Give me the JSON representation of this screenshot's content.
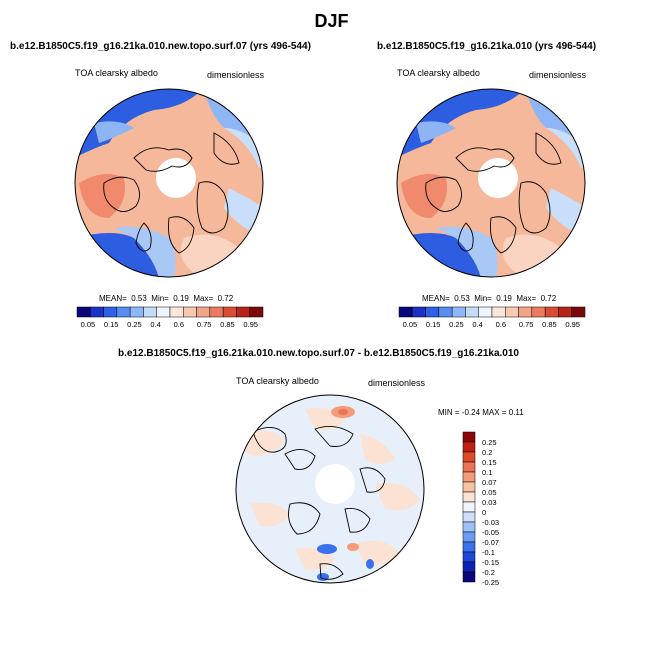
{
  "title": "DJF",
  "colors": {
    "hbar": [
      "#08087a",
      "#1a32c8",
      "#2f5fe6",
      "#5a8ef4",
      "#8fb8f8",
      "#c5dcf8",
      "#eef4fb",
      "#fbe6dc",
      "#f9c9b0",
      "#f4a488",
      "#ec7a5e",
      "#dc4c33",
      "#b8241a",
      "#7a0a0a"
    ],
    "vbar": [
      "#08087a",
      "#1020b4",
      "#1c48d8",
      "#3a72ee",
      "#6a9cf5",
      "#9ec2f8",
      "#cfe0f8",
      "#f1f5fb",
      "#fbe2d2",
      "#f8c2a4",
      "#f49c7a",
      "#ec7252",
      "#e04a2c",
      "#c0200f",
      "#8a0606"
    ]
  },
  "panels": [
    {
      "case": "b.e12.B1850C5.f19_g16.21ka.010.new.topo.surf.07 (yrs 496-544)",
      "variable": "TOA clearsky albedo",
      "units": "dimensionless",
      "stats": {
        "mean_label": "MEAN=",
        "mean": "0.53",
        "min_label": "Min=",
        "min": "0.19",
        "max_label": "Max=",
        "max": "0.72"
      },
      "ticks": [
        "0.05",
        "0.15",
        "0.25",
        "0.4",
        "0.6",
        "0.75",
        "0.85",
        "0.95"
      ]
    },
    {
      "case": "b.e12.B1850C5.f19_g16.21ka.010 (yrs 496-544)",
      "variable": "TOA clearsky albedo",
      "units": "dimensionless",
      "stats": {
        "mean_label": "MEAN=",
        "mean": "0.53",
        "min_label": "Min=",
        "min": "0.19",
        "max_label": "Max=",
        "max": "0.72"
      },
      "ticks": [
        "0.05",
        "0.15",
        "0.25",
        "0.4",
        "0.6",
        "0.75",
        "0.85",
        "0.95"
      ]
    }
  ],
  "diff": {
    "title": "b.e12.B1850C5.f19_g16.21ka.010.new.topo.surf.07 - b.e12.B1850C5.f19_g16.21ka.010",
    "variable": "TOA clearsky albedo",
    "units": "dimensionless",
    "minmax": "MIN = -0.24 MAX = 0.11",
    "ticks": [
      "0.25",
      "0.2",
      "0.15",
      "0.1",
      "0.07",
      "0.05",
      "0.03",
      "0",
      "-0.03",
      "-0.05",
      "-0.07",
      "-0.1",
      "-0.15",
      "-0.2",
      "-0.25"
    ]
  }
}
